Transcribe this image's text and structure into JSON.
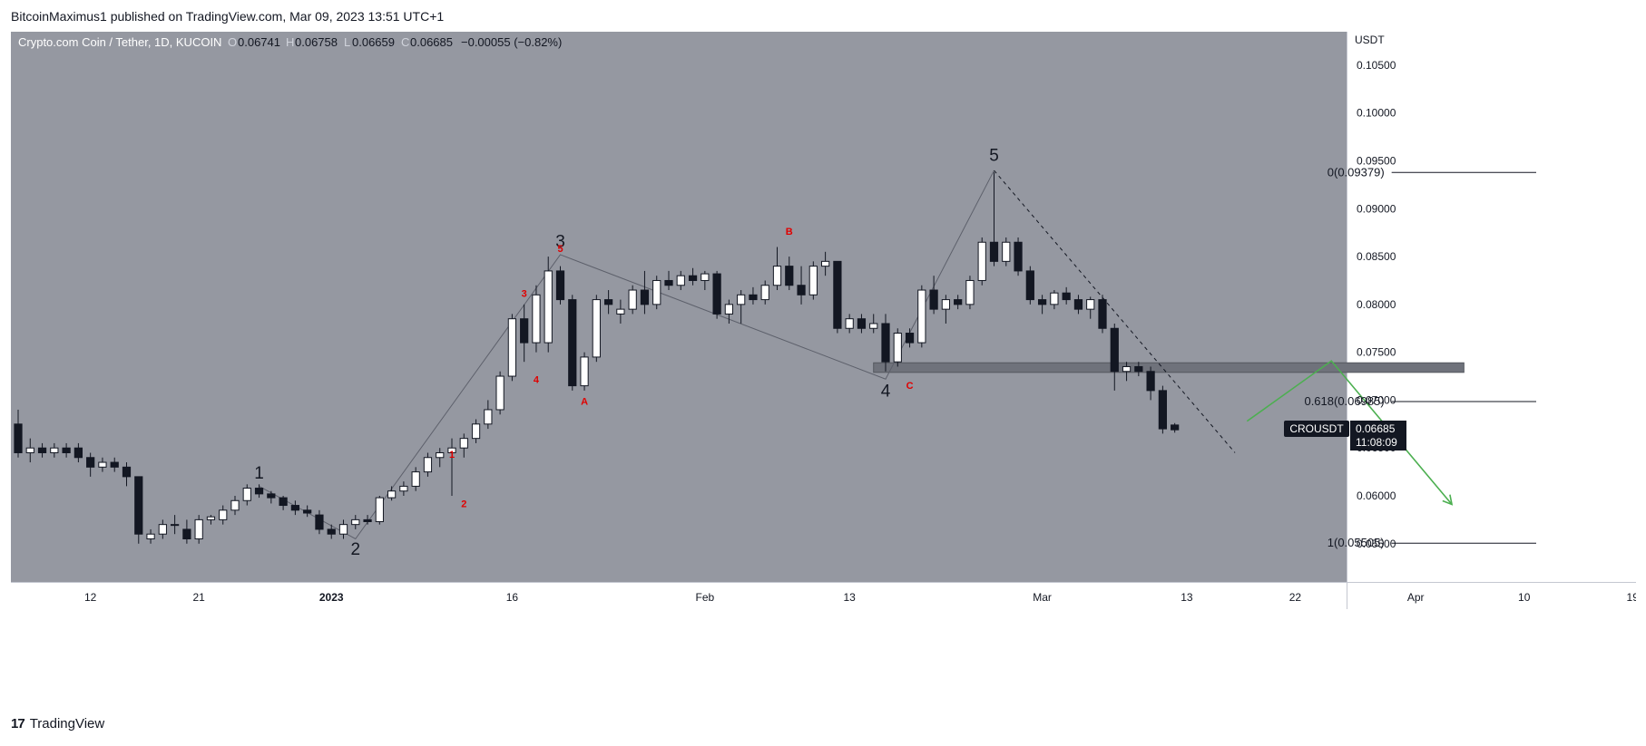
{
  "header": {
    "publisher_line": "BitcoinMaximus1 published on TradingView.com, Mar 09, 2023 13:51 UTC+1"
  },
  "legend": {
    "symbol_text": "Crypto.com Coin / Tether, 1D, KUCOIN",
    "open_label": "O",
    "open": "0.06741",
    "high_label": "H",
    "high": "0.06758",
    "low_label": "L",
    "low": "0.06659",
    "close_label": "C",
    "close": "0.06685",
    "change": "−0.00055 (−0.82%)"
  },
  "price_axis": {
    "currency": "USDT",
    "ticks": [
      "0.10500",
      "0.10000",
      "0.09500",
      "0.09000",
      "0.08500",
      "0.08000",
      "0.07500",
      "0.07000",
      "0.06500",
      "0.06000",
      "0.05500"
    ]
  },
  "time_axis": {
    "ticks": [
      "12",
      "21",
      "2023",
      "16",
      "Feb",
      "13",
      "Mar",
      "13",
      "22",
      "Apr",
      "10",
      "19"
    ]
  },
  "price_tag": {
    "ticker": "CROUSDT",
    "price": "0.06685",
    "countdown": "11:08:09"
  },
  "fib_levels": [
    {
      "label": "0(0.09379)",
      "value": 0.09379
    },
    {
      "label": "0.618(0.06985)",
      "value": 0.06985
    },
    {
      "label": "1(0.05505)",
      "value": 0.05505
    }
  ],
  "wave_labels_primary": [
    "1",
    "2",
    "3",
    "4",
    "5"
  ],
  "wave_labels_sub": [
    "1",
    "2",
    "3",
    "4",
    "5",
    "A",
    "B",
    "C"
  ],
  "branding": {
    "logo": "17",
    "name": "TradingView"
  },
  "colors": {
    "plot_bg": "#9598a1",
    "up_candle": "#ffffff",
    "down_candle": "#131722",
    "projection": "#4caf50",
    "sub_wave": "#e00000",
    "resistance_zone": "#6f727b"
  },
  "chart_data": {
    "type": "candlestick",
    "title": "Crypto.com Coin / Tether, 1D, KUCOIN",
    "ylabel": "USDT",
    "ylim": [
      0.051,
      0.1085
    ],
    "x_start": "2022-12-06",
    "x_end": "2023-03-24",
    "ohlc": [
      [
        "2022-12-06",
        0.0675,
        0.069,
        0.064,
        0.0645
      ],
      [
        "2022-12-07",
        0.0645,
        0.066,
        0.0635,
        0.065
      ],
      [
        "2022-12-08",
        0.065,
        0.0655,
        0.064,
        0.0645
      ],
      [
        "2022-12-09",
        0.0645,
        0.0655,
        0.064,
        0.065
      ],
      [
        "2022-12-10",
        0.065,
        0.0655,
        0.064,
        0.0645
      ],
      [
        "2022-12-11",
        0.065,
        0.0655,
        0.0635,
        0.064
      ],
      [
        "2022-12-12",
        0.064,
        0.0645,
        0.062,
        0.063
      ],
      [
        "2022-12-13",
        0.063,
        0.064,
        0.0625,
        0.0635
      ],
      [
        "2022-12-14",
        0.0635,
        0.064,
        0.0625,
        0.063
      ],
      [
        "2022-12-15",
        0.063,
        0.0635,
        0.061,
        0.062
      ],
      [
        "2022-12-16",
        0.062,
        0.062,
        0.055,
        0.056
      ],
      [
        "2022-12-17",
        0.0555,
        0.0565,
        0.055,
        0.056
      ],
      [
        "2022-12-18",
        0.056,
        0.0575,
        0.0555,
        0.057
      ],
      [
        "2022-12-19",
        0.057,
        0.058,
        0.056,
        0.057
      ],
      [
        "2022-12-20",
        0.0565,
        0.0575,
        0.055,
        0.0555
      ],
      [
        "2022-12-21",
        0.0555,
        0.058,
        0.055,
        0.0575
      ],
      [
        "2022-12-22",
        0.0575,
        0.058,
        0.057,
        0.0578
      ],
      [
        "2022-12-23",
        0.0575,
        0.059,
        0.057,
        0.0585
      ],
      [
        "2022-12-24",
        0.0585,
        0.06,
        0.058,
        0.0595
      ],
      [
        "2022-12-25",
        0.0595,
        0.0612,
        0.059,
        0.0608
      ],
      [
        "2022-12-26",
        0.0608,
        0.0612,
        0.0598,
        0.0602
      ],
      [
        "2022-12-27",
        0.0602,
        0.0605,
        0.0592,
        0.0598
      ],
      [
        "2022-12-28",
        0.0598,
        0.06,
        0.0585,
        0.059
      ],
      [
        "2022-12-29",
        0.059,
        0.0595,
        0.058,
        0.0585
      ],
      [
        "2022-12-30",
        0.0585,
        0.059,
        0.0578,
        0.0582
      ],
      [
        "2022-12-31",
        0.058,
        0.0585,
        0.056,
        0.0565
      ],
      [
        "2023-01-01",
        0.0565,
        0.057,
        0.0555,
        0.056
      ],
      [
        "2023-01-02",
        0.056,
        0.0575,
        0.0555,
        0.057
      ],
      [
        "2023-01-03",
        0.057,
        0.058,
        0.0565,
        0.0575
      ],
      [
        "2023-01-04",
        0.0575,
        0.058,
        0.057,
        0.0573
      ],
      [
        "2023-01-05",
        0.0573,
        0.06,
        0.057,
        0.0598
      ],
      [
        "2023-01-06",
        0.0598,
        0.061,
        0.0595,
        0.0605
      ],
      [
        "2023-01-07",
        0.0605,
        0.0615,
        0.06,
        0.061
      ],
      [
        "2023-01-08",
        0.061,
        0.063,
        0.0605,
        0.0625
      ],
      [
        "2023-01-09",
        0.0625,
        0.0645,
        0.062,
        0.064
      ],
      [
        "2023-01-10",
        0.064,
        0.065,
        0.063,
        0.0645
      ],
      [
        "2023-01-11",
        0.0645,
        0.066,
        0.06,
        0.065
      ],
      [
        "2023-01-12",
        0.065,
        0.0665,
        0.064,
        0.066
      ],
      [
        "2023-01-13",
        0.066,
        0.068,
        0.0655,
        0.0675
      ],
      [
        "2023-01-14",
        0.0675,
        0.07,
        0.067,
        0.069
      ],
      [
        "2023-01-15",
        0.069,
        0.073,
        0.0685,
        0.0725
      ],
      [
        "2023-01-16",
        0.0725,
        0.079,
        0.072,
        0.0785
      ],
      [
        "2023-01-17",
        0.0785,
        0.08,
        0.074,
        0.076
      ],
      [
        "2023-01-18",
        0.076,
        0.082,
        0.075,
        0.081
      ],
      [
        "2023-01-19",
        0.076,
        0.085,
        0.075,
        0.0835
      ],
      [
        "2023-01-20",
        0.0835,
        0.084,
        0.08,
        0.0805
      ],
      [
        "2023-01-21",
        0.0805,
        0.081,
        0.071,
        0.0715
      ],
      [
        "2023-01-22",
        0.0715,
        0.075,
        0.071,
        0.0745
      ],
      [
        "2023-01-23",
        0.0745,
        0.081,
        0.074,
        0.0805
      ],
      [
        "2023-01-24",
        0.0805,
        0.0815,
        0.079,
        0.08
      ],
      [
        "2023-01-25",
        0.079,
        0.0805,
        0.078,
        0.0795
      ],
      [
        "2023-01-26",
        0.0795,
        0.082,
        0.079,
        0.0815
      ],
      [
        "2023-01-27",
        0.0815,
        0.0835,
        0.079,
        0.08
      ],
      [
        "2023-01-28",
        0.08,
        0.083,
        0.0795,
        0.0825
      ],
      [
        "2023-01-29",
        0.0825,
        0.0835,
        0.0815,
        0.082
      ],
      [
        "2023-01-30",
        0.082,
        0.0835,
        0.0815,
        0.083
      ],
      [
        "2023-01-31",
        0.083,
        0.0838,
        0.082,
        0.0825
      ],
      [
        "2023-02-01",
        0.0825,
        0.0835,
        0.0815,
        0.0832
      ],
      [
        "2023-02-02",
        0.0832,
        0.0835,
        0.0785,
        0.079
      ],
      [
        "2023-02-03",
        0.079,
        0.0805,
        0.078,
        0.08
      ],
      [
        "2023-02-04",
        0.08,
        0.0815,
        0.078,
        0.081
      ],
      [
        "2023-02-05",
        0.081,
        0.0818,
        0.08,
        0.0805
      ],
      [
        "2023-02-06",
        0.0805,
        0.0825,
        0.08,
        0.082
      ],
      [
        "2023-02-07",
        0.082,
        0.086,
        0.0815,
        0.084
      ],
      [
        "2023-02-08",
        0.084,
        0.085,
        0.0815,
        0.082
      ],
      [
        "2023-02-09",
        0.082,
        0.084,
        0.08,
        0.081
      ],
      [
        "2023-02-10",
        0.081,
        0.0845,
        0.0805,
        0.084
      ],
      [
        "2023-02-11",
        0.084,
        0.0855,
        0.083,
        0.0845
      ],
      [
        "2023-02-12",
        0.0845,
        0.0845,
        0.077,
        0.0775
      ],
      [
        "2023-02-13",
        0.0775,
        0.079,
        0.077,
        0.0785
      ],
      [
        "2023-02-14",
        0.0785,
        0.079,
        0.077,
        0.0775
      ],
      [
        "2023-02-15",
        0.0775,
        0.079,
        0.077,
        0.078
      ],
      [
        "2023-02-16",
        0.078,
        0.079,
        0.073,
        0.074
      ],
      [
        "2023-02-17",
        0.074,
        0.0775,
        0.0735,
        0.077
      ],
      [
        "2023-02-18",
        0.077,
        0.0775,
        0.0755,
        0.076
      ],
      [
        "2023-02-19",
        0.076,
        0.082,
        0.0755,
        0.0815
      ],
      [
        "2023-02-20",
        0.0815,
        0.083,
        0.079,
        0.0795
      ],
      [
        "2023-02-21",
        0.0795,
        0.081,
        0.078,
        0.0805
      ],
      [
        "2023-02-22",
        0.0805,
        0.081,
        0.0795,
        0.08
      ],
      [
        "2023-02-23",
        0.08,
        0.083,
        0.0795,
        0.0825
      ],
      [
        "2023-02-24",
        0.0825,
        0.087,
        0.082,
        0.0865
      ],
      [
        "2023-02-25",
        0.0865,
        0.0938,
        0.084,
        0.0845
      ],
      [
        "2023-02-26",
        0.0845,
        0.087,
        0.084,
        0.0865
      ],
      [
        "2023-02-27",
        0.0865,
        0.087,
        0.083,
        0.0835
      ],
      [
        "2023-02-28",
        0.0835,
        0.084,
        0.08,
        0.0805
      ],
      [
        "2023-03-01",
        0.0805,
        0.081,
        0.079,
        0.08
      ],
      [
        "2023-03-02",
        0.08,
        0.0815,
        0.0795,
        0.0812
      ],
      [
        "2023-03-03",
        0.0812,
        0.0818,
        0.08,
        0.0805
      ],
      [
        "2023-03-04",
        0.0805,
        0.081,
        0.079,
        0.0795
      ],
      [
        "2023-03-05",
        0.0795,
        0.0808,
        0.0785,
        0.0805
      ],
      [
        "2023-03-06",
        0.0805,
        0.081,
        0.077,
        0.0775
      ],
      [
        "2023-03-07",
        0.0775,
        0.078,
        0.071,
        0.073
      ],
      [
        "2023-03-08",
        0.073,
        0.074,
        0.072,
        0.0735
      ],
      [
        "2023-03-09",
        0.0735,
        0.074,
        0.0725,
        0.073
      ],
      [
        "2023-03-10",
        0.073,
        0.0735,
        0.07,
        0.071
      ],
      [
        "2023-03-11",
        0.071,
        0.0715,
        0.0665,
        0.067
      ],
      [
        "2023-03-12",
        0.0674,
        0.0676,
        0.0666,
        0.0669
      ]
    ],
    "wave_path": [
      {
        "x": "2022-12-26",
        "y": 0.061
      },
      {
        "x": "2023-01-03",
        "y": 0.0555
      },
      {
        "x": "2023-01-20",
        "y": 0.0852
      },
      {
        "x": "2023-02-16",
        "y": 0.0722
      },
      {
        "x": "2023-02-25",
        "y": 0.094
      }
    ],
    "wave_labels": [
      {
        "text": "1",
        "x": "2022-12-26",
        "y": 0.0618,
        "pos": "above"
      },
      {
        "text": "2",
        "x": "2023-01-03",
        "y": 0.055,
        "pos": "below"
      },
      {
        "text": "3",
        "x": "2023-01-20",
        "y": 0.086,
        "pos": "above"
      },
      {
        "text": "4",
        "x": "2023-02-16",
        "y": 0.0715,
        "pos": "below"
      },
      {
        "text": "5",
        "x": "2023-02-25",
        "y": 0.095,
        "pos": "above"
      }
    ],
    "sub_labels": [
      {
        "text": "1",
        "x": "2023-01-11",
        "y": 0.064
      },
      {
        "text": "2",
        "x": "2023-01-12",
        "y": 0.0588
      },
      {
        "text": "3",
        "x": "2023-01-17",
        "y": 0.0808
      },
      {
        "text": "4",
        "x": "2023-01-18",
        "y": 0.0718
      },
      {
        "text": "5",
        "x": "2023-01-20",
        "y": 0.0855
      },
      {
        "text": "A",
        "x": "2023-01-22",
        "y": 0.0695
      },
      {
        "text": "B",
        "x": "2023-02-08",
        "y": 0.0873
      },
      {
        "text": "C",
        "x": "2023-02-18",
        "y": 0.0712
      }
    ],
    "resistance_zone": {
      "x1": "2023-02-15",
      "x2": "2023-04-05",
      "y1": 0.0729,
      "y2": 0.0739
    },
    "trend_line": {
      "x1": "2023-02-25",
      "y1": 0.094,
      "x2": "2023-03-17",
      "y2": 0.0645
    },
    "projection": [
      {
        "x": "2023-03-18",
        "y": 0.0678
      },
      {
        "x": "2023-03-25",
        "y": 0.0741
      },
      {
        "x": "2023-04-04",
        "y": 0.0591
      }
    ],
    "fib_x_range": [
      "2023-03-30",
      "2023-04-11"
    ]
  }
}
